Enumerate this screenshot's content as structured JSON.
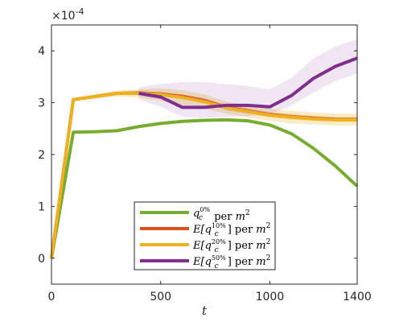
{
  "chart_data": {
    "type": "line",
    "title": "",
    "xlabel": "t",
    "ylabel": "",
    "xlim": [
      0,
      1400
    ],
    "ylim": [
      -0.5,
      4.5
    ],
    "y_multiplier_label": "×10",
    "y_multiplier_exponent": "-4",
    "xticks": [
      0,
      500,
      1000,
      1400
    ],
    "xtick_labels": [
      "0",
      "500",
      "1000",
      "1400"
    ],
    "yticks": [
      0,
      1,
      2,
      3,
      4
    ],
    "ytick_labels": [
      "0",
      "1",
      "2",
      "3",
      "4"
    ],
    "grid": false,
    "legend_position": "bottom-center",
    "x": [
      0,
      100,
      200,
      300,
      400,
      500,
      600,
      700,
      800,
      900,
      1000,
      1100,
      1200,
      1300,
      1400
    ],
    "series": [
      {
        "name": "q_c^{0%} per m^2",
        "color": "#77AC30",
        "values": [
          0.0,
          2.43,
          2.44,
          2.46,
          2.54,
          2.6,
          2.64,
          2.66,
          2.67,
          2.65,
          2.57,
          2.4,
          2.12,
          1.78,
          1.39
        ]
      },
      {
        "name": "E[q_c^{10%}] per m^2",
        "color": "#D95319",
        "values": [
          0.0,
          3.06,
          3.12,
          3.18,
          3.19,
          3.17,
          3.12,
          3.04,
          2.91,
          2.84,
          2.77,
          2.73,
          2.7,
          2.68,
          2.68
        ],
        "band_lower": [
          0.0,
          3.06,
          3.1,
          3.15,
          3.16,
          3.14,
          3.08,
          2.99,
          2.86,
          2.79,
          2.72,
          2.68,
          2.65,
          2.64,
          2.64
        ],
        "band_upper": [
          0.0,
          3.06,
          3.14,
          3.21,
          3.22,
          3.2,
          3.16,
          3.09,
          2.96,
          2.89,
          2.82,
          2.78,
          2.75,
          2.72,
          2.72
        ]
      },
      {
        "name": "E[q_c^{20%}] per m^2",
        "color": "#EDB120",
        "values": [
          0.0,
          3.06,
          3.12,
          3.18,
          3.18,
          3.16,
          3.1,
          3.02,
          2.9,
          2.83,
          2.76,
          2.72,
          2.69,
          2.67,
          2.67
        ],
        "band_lower": [
          0.0,
          3.06,
          3.08,
          3.12,
          3.1,
          3.04,
          2.96,
          2.88,
          2.79,
          2.72,
          2.65,
          2.6,
          2.58,
          2.56,
          2.56
        ],
        "band_upper": [
          0.0,
          3.06,
          3.16,
          3.24,
          3.26,
          3.28,
          3.24,
          3.16,
          3.02,
          2.95,
          2.88,
          2.84,
          2.81,
          2.79,
          2.79
        ]
      },
      {
        "name": "E[q_c^{50%}] per m^2",
        "color": "#7E2F8E",
        "values": [
          null,
          null,
          null,
          null,
          3.18,
          3.11,
          2.91,
          2.91,
          2.95,
          2.95,
          2.92,
          3.14,
          3.47,
          3.7,
          3.86
        ],
        "band_lower": [
          null,
          null,
          null,
          null,
          3.06,
          2.92,
          2.73,
          2.71,
          2.72,
          2.74,
          2.78,
          2.95,
          3.2,
          3.42,
          3.56
        ],
        "band_upper": [
          null,
          null,
          null,
          null,
          3.3,
          3.36,
          3.4,
          3.4,
          3.36,
          3.32,
          3.26,
          3.48,
          3.86,
          4.08,
          4.23
        ]
      }
    ],
    "legend": [
      {
        "base": "q",
        "sub": "c",
        "sup": "0%",
        "suffix": " per ",
        "unit": "m",
        "unit_sup": "2",
        "expected": false
      },
      {
        "base": "q",
        "sub": "c",
        "sup": "10%",
        "suffix": " per ",
        "unit": "m",
        "unit_sup": "2",
        "expected": true
      },
      {
        "base": "q",
        "sub": "c",
        "sup": "20%",
        "suffix": " per ",
        "unit": "m",
        "unit_sup": "2",
        "expected": true
      },
      {
        "base": "q",
        "sub": "c",
        "sup": "50%",
        "suffix": " per ",
        "unit": "m",
        "unit_sup": "2",
        "expected": true
      }
    ]
  }
}
